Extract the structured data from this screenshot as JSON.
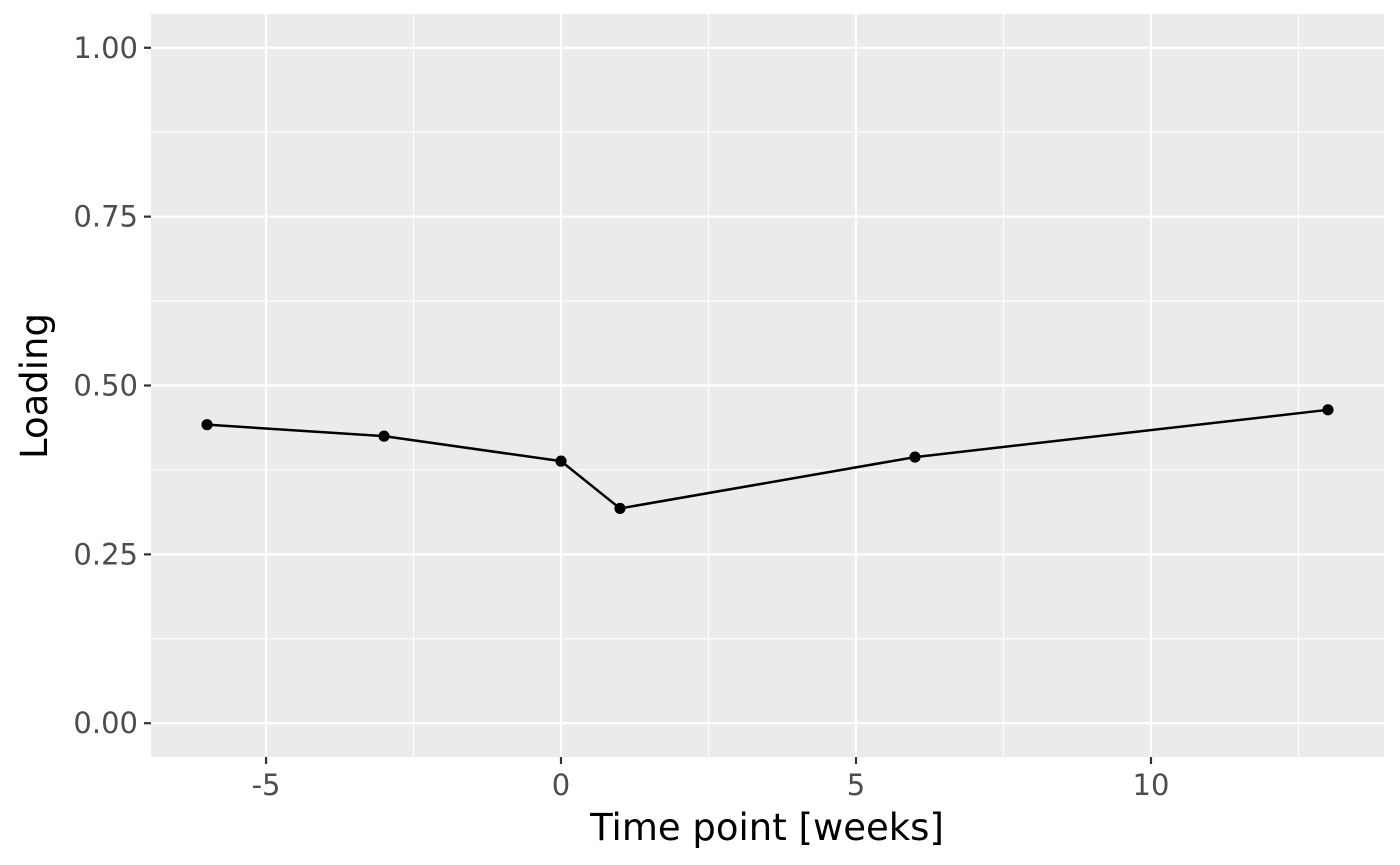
{
  "chart_data": {
    "type": "line",
    "xlabel": "Time point [weeks]",
    "ylabel": "Loading",
    "xlim": [
      -6.95,
      13.95
    ],
    "ylim": [
      -0.05,
      1.05
    ],
    "x_ticks": [
      -5,
      0,
      5,
      10
    ],
    "x_tick_labels": [
      "-5",
      "0",
      "5",
      "10"
    ],
    "x_minor_ticks": [
      -2.5,
      2.5,
      7.5,
      12.5
    ],
    "y_ticks": [
      0,
      0.25,
      0.5,
      0.75,
      1.0
    ],
    "y_tick_labels": [
      "0.00",
      "0.25",
      "0.50",
      "0.75",
      "1.00"
    ],
    "y_minor_ticks": [
      0.125,
      0.375,
      0.625,
      0.875
    ],
    "grid": true,
    "legend": "none",
    "series": [
      {
        "color": "#000000",
        "x": [
          -6,
          -3,
          0,
          1,
          6,
          13
        ],
        "y": [
          0.442,
          0.425,
          0.388,
          0.318,
          0.394,
          0.464
        ]
      }
    ]
  }
}
